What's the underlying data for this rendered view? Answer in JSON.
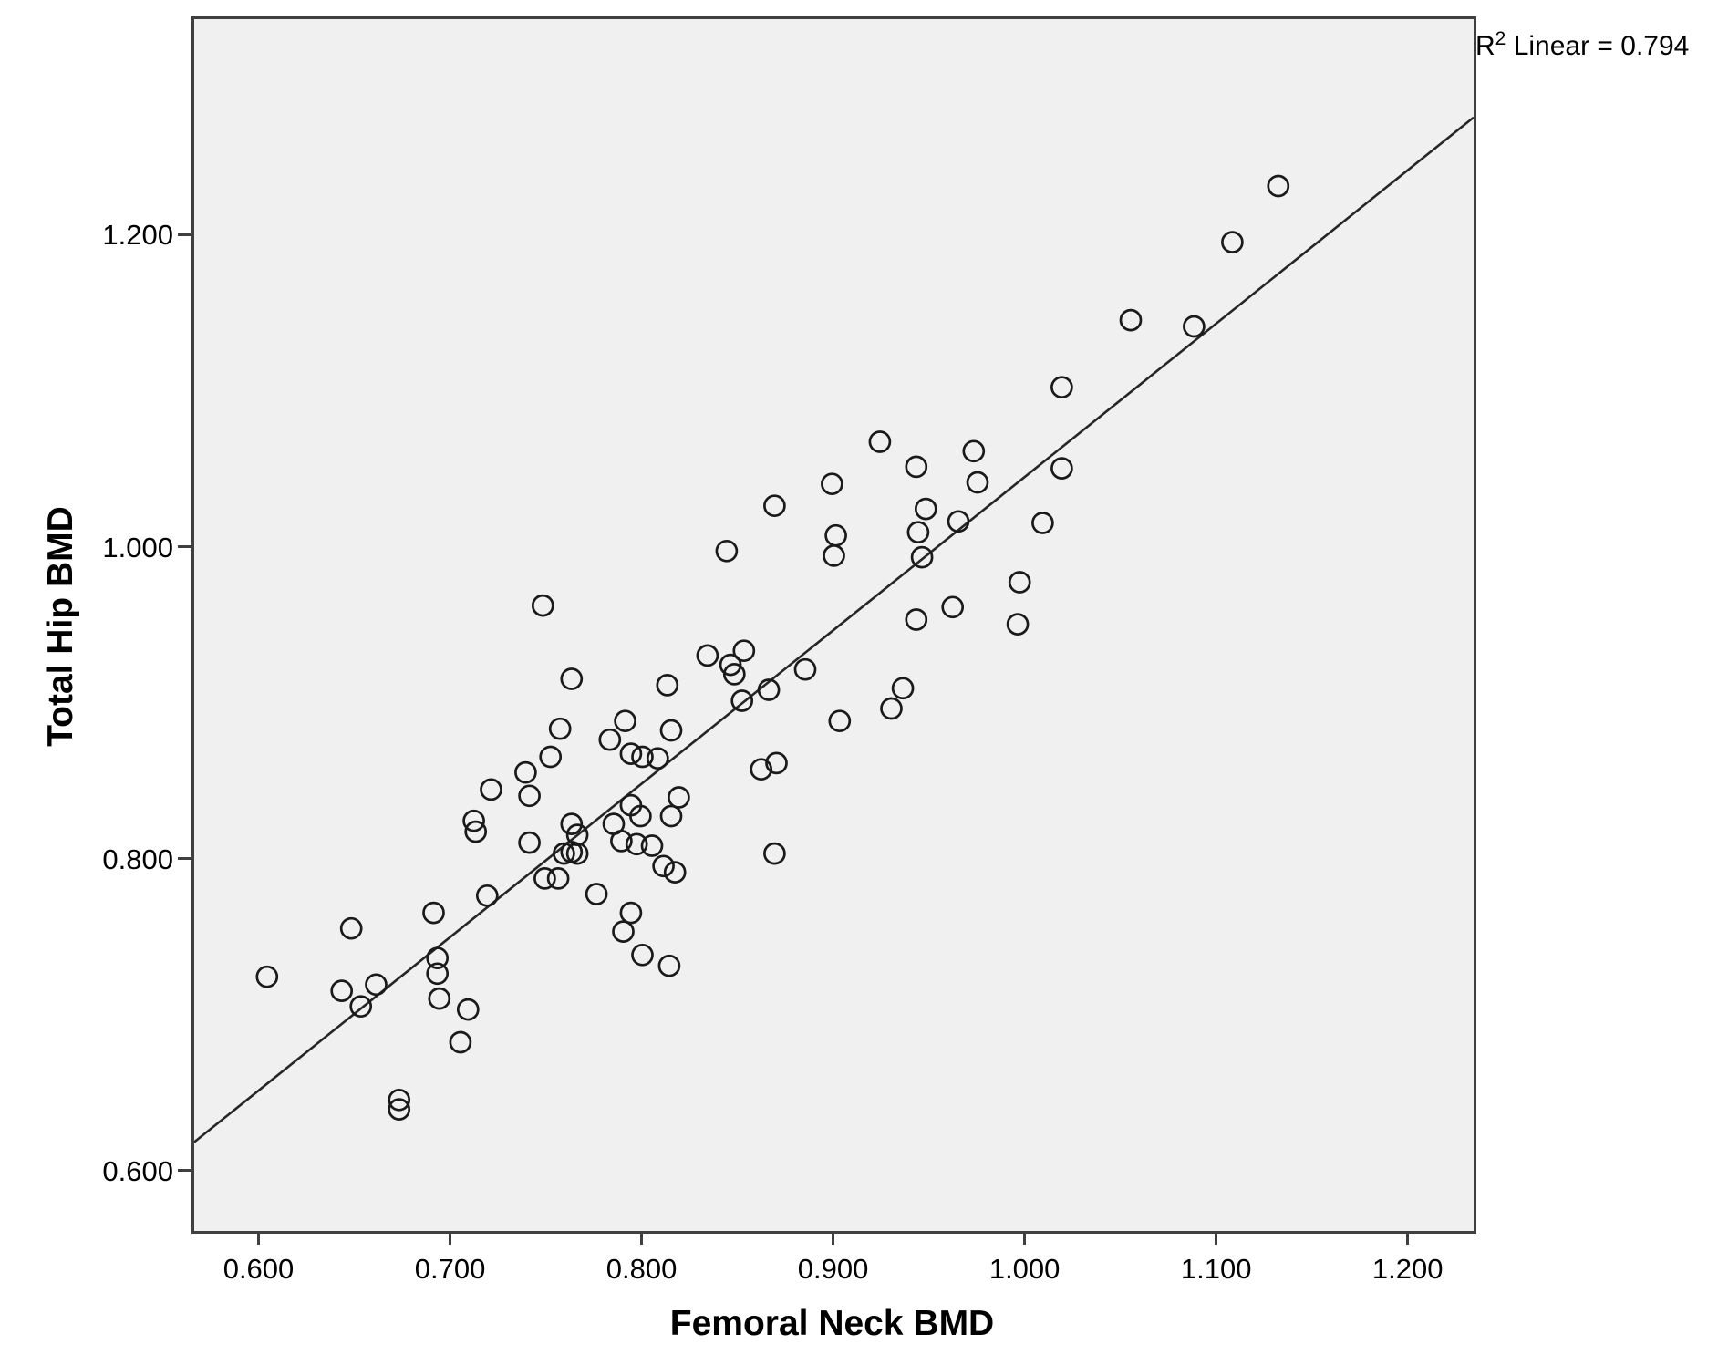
{
  "annotation": {
    "r_base": "R",
    "r_sup": "2",
    "r_text": " Linear = 0.794"
  },
  "chart_data": {
    "type": "scatter",
    "title": "",
    "xlabel": "Femoral Neck BMD",
    "ylabel": "Total Hip BMD",
    "r2_linear": 0.794,
    "xlim": [
      0.565,
      1.233
    ],
    "ylim": [
      0.563,
      1.34
    ],
    "grid": false,
    "legend_position": "none",
    "x_tick_values": [
      0.6,
      0.7,
      0.8,
      0.9,
      1.0,
      1.1,
      1.2
    ],
    "x_tick_labels": [
      "0.600",
      "0.700",
      "0.800",
      "0.900",
      "1.000",
      "1.100",
      "1.200"
    ],
    "y_tick_values": [
      0.6,
      0.8,
      1.0,
      1.2
    ],
    "y_tick_labels": [
      "0.600",
      "0.800",
      "1.000",
      "1.200"
    ],
    "regression_line": {
      "x1": 0.565,
      "y1": 0.62,
      "x2": 1.233,
      "y2": 1.277
    },
    "points": [
      [
        1.131,
        1.233
      ],
      [
        1.107,
        1.197
      ],
      [
        1.087,
        1.143
      ],
      [
        1.054,
        1.147
      ],
      [
        1.018,
        1.104
      ],
      [
        0.923,
        1.069
      ],
      [
        0.942,
        1.053
      ],
      [
        0.972,
        1.063
      ],
      [
        1.018,
        1.052
      ],
      [
        0.898,
        1.042
      ],
      [
        0.974,
        1.043
      ],
      [
        0.868,
        1.028
      ],
      [
        0.947,
        1.026
      ],
      [
        0.943,
        1.011
      ],
      [
        0.945,
        0.995
      ],
      [
        0.964,
        1.018
      ],
      [
        1.008,
        1.017
      ],
      [
        0.996,
        0.979
      ],
      [
        0.961,
        0.963
      ],
      [
        0.995,
        0.952
      ],
      [
        0.942,
        0.955
      ],
      [
        0.935,
        0.911
      ],
      [
        0.929,
        0.898
      ],
      [
        0.902,
        0.89
      ],
      [
        0.884,
        0.923
      ],
      [
        0.865,
        0.91
      ],
      [
        0.833,
        0.932
      ],
      [
        0.852,
        0.935
      ],
      [
        0.845,
        0.926
      ],
      [
        0.847,
        0.92
      ],
      [
        0.851,
        0.903
      ],
      [
        0.869,
        0.863
      ],
      [
        0.861,
        0.859
      ],
      [
        0.818,
        0.841
      ],
      [
        0.814,
        0.829
      ],
      [
        0.747,
        0.964
      ],
      [
        0.762,
        0.917
      ],
      [
        0.756,
        0.885
      ],
      [
        0.751,
        0.867
      ],
      [
        0.738,
        0.857
      ],
      [
        0.72,
        0.846
      ],
      [
        0.74,
        0.842
      ],
      [
        0.79,
        0.89
      ],
      [
        0.782,
        0.878
      ],
      [
        0.793,
        0.869
      ],
      [
        0.799,
        0.867
      ],
      [
        0.807,
        0.866
      ],
      [
        0.812,
        0.913
      ],
      [
        0.814,
        0.884
      ],
      [
        0.793,
        0.836
      ],
      [
        0.798,
        0.829
      ],
      [
        0.784,
        0.824
      ],
      [
        0.762,
        0.824
      ],
      [
        0.711,
        0.826
      ],
      [
        0.712,
        0.819
      ],
      [
        0.74,
        0.812
      ],
      [
        0.765,
        0.817
      ],
      [
        0.762,
        0.806
      ],
      [
        0.748,
        0.789
      ],
      [
        0.755,
        0.789
      ],
      [
        0.758,
        0.805
      ],
      [
        0.765,
        0.805
      ],
      [
        0.788,
        0.813
      ],
      [
        0.796,
        0.811
      ],
      [
        0.804,
        0.81
      ],
      [
        0.81,
        0.797
      ],
      [
        0.775,
        0.779
      ],
      [
        0.793,
        0.767
      ],
      [
        0.789,
        0.755
      ],
      [
        0.799,
        0.74
      ],
      [
        0.813,
        0.733
      ],
      [
        0.718,
        0.778
      ],
      [
        0.69,
        0.767
      ],
      [
        0.647,
        0.757
      ],
      [
        0.603,
        0.726
      ],
      [
        0.642,
        0.717
      ],
      [
        0.66,
        0.721
      ],
      [
        0.652,
        0.707
      ],
      [
        0.692,
        0.738
      ],
      [
        0.692,
        0.728
      ],
      [
        0.693,
        0.712
      ],
      [
        0.708,
        0.705
      ],
      [
        0.704,
        0.684
      ],
      [
        0.672,
        0.647
      ],
      [
        0.672,
        0.641
      ],
      [
        0.868,
        0.805
      ],
      [
        0.816,
        0.793
      ],
      [
        0.843,
        0.999
      ],
      [
        0.9,
        1.009
      ],
      [
        0.899,
        0.996
      ]
    ]
  },
  "style": {
    "page_bg": "#ffffff",
    "plot_bg": "#f0f0f0",
    "border_color": "#404040",
    "point_color": "#1a1a1a",
    "line_color": "#262626",
    "text_color": "#000000"
  }
}
